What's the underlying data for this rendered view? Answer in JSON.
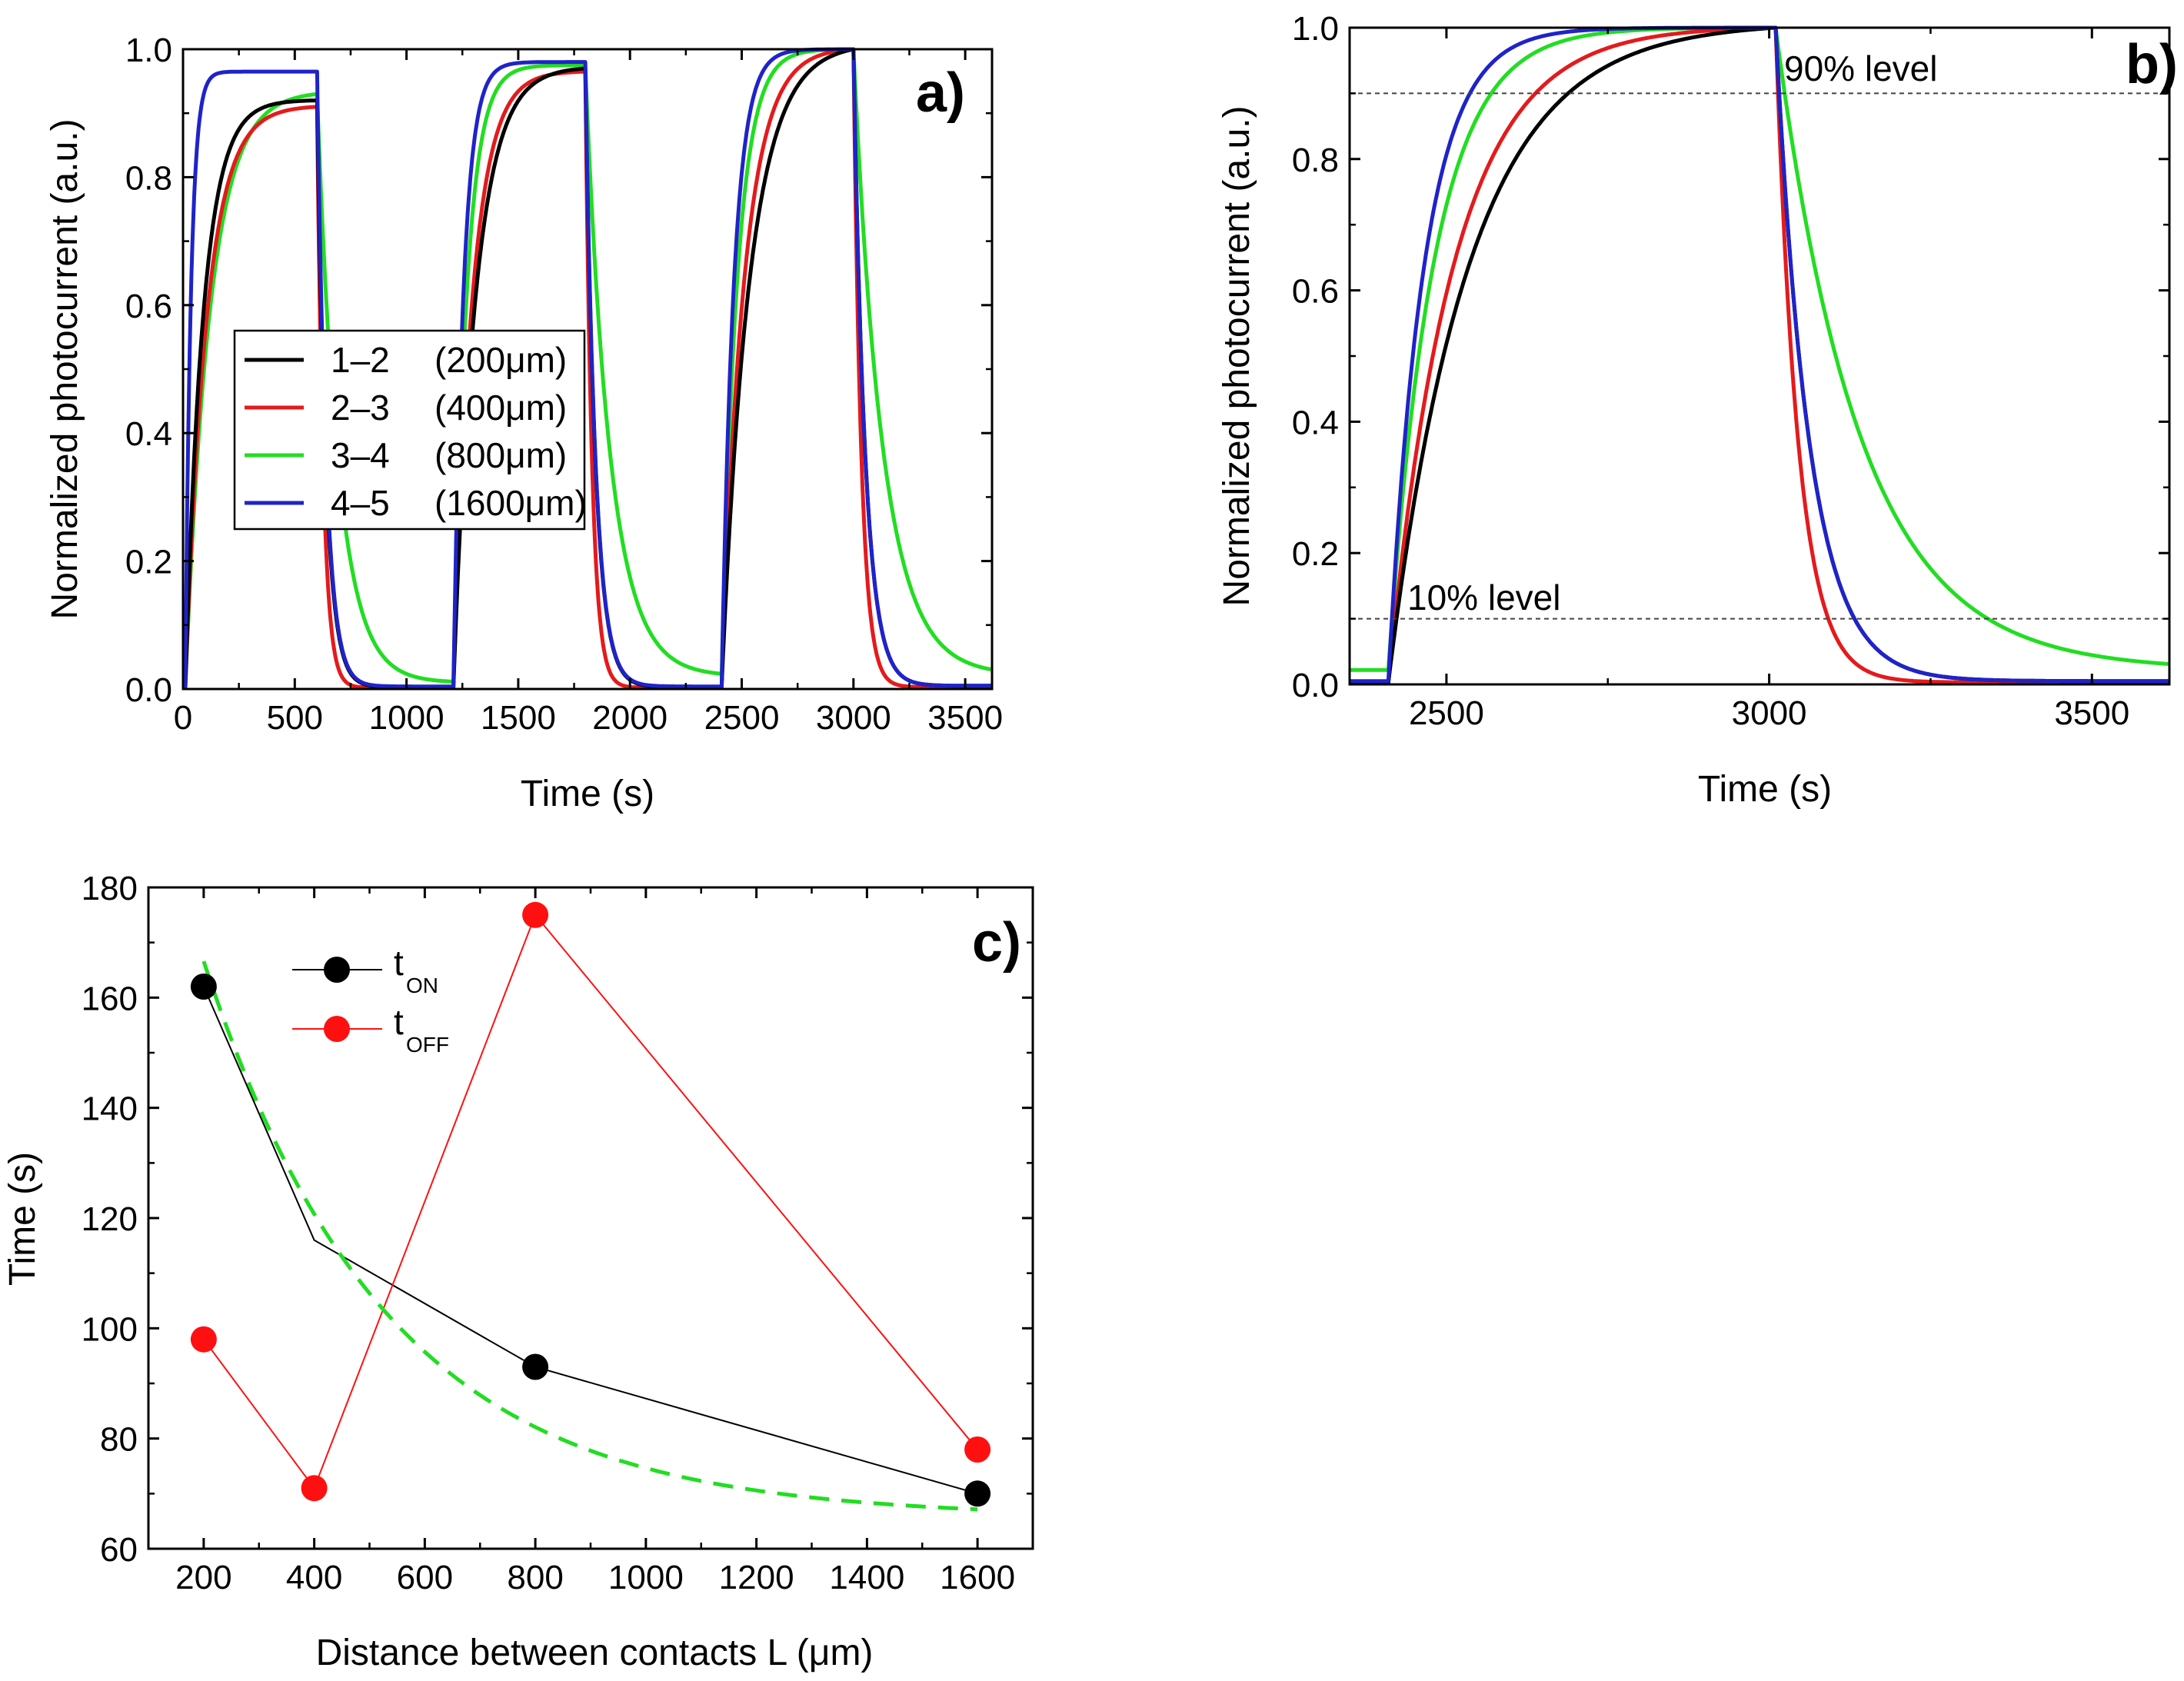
{
  "chart_data": [
    {
      "id": "a",
      "type": "line",
      "panel_label": "a)",
      "xlabel": "Time (s)",
      "ylabel": "Normalized photocurrent (a.u.)",
      "xlim": [
        0,
        3620
      ],
      "ylim": [
        0,
        1.0
      ],
      "xticks": [
        0,
        500,
        1000,
        1500,
        2000,
        2500,
        3000,
        3500
      ],
      "xtick_labels": [
        "0",
        "500",
        "1000",
        "1500",
        "2000",
        "2500",
        "3000",
        "3500"
      ],
      "yticks": [
        0.0,
        0.2,
        0.4,
        0.6,
        0.8,
        1.0
      ],
      "ytick_labels": [
        "0.0",
        "0.2",
        "0.4",
        "0.6",
        "0.8",
        "1.0"
      ],
      "legend_position": "center-left",
      "cycles": [
        [
          10,
          600,
          1210
        ],
        [
          1210,
          1800,
          2410
        ],
        [
          2410,
          3000,
          3620
        ]
      ],
      "series": [
        {
          "name": "1-2",
          "label_a": "1–2",
          "label_b": "(200μm)",
          "color": "#000000",
          "on_tau": [
            80,
            100,
            125
          ],
          "off_tau": [
            40,
            45,
            52
          ],
          "cycle_peaks": [
            0.92,
            0.97,
            1.0
          ],
          "cycle_ends": [
            0.003,
            0.003,
            0.005
          ]
        },
        {
          "name": "2-3",
          "label_a": "2–3",
          "label_b": "(400μm)",
          "color": "#e41a1c",
          "on_tau": [
            95,
            85,
            100
          ],
          "off_tau": [
            28,
            30,
            35
          ],
          "cycle_peaks": [
            0.91,
            0.965,
            1.0
          ],
          "cycle_ends": [
            0.002,
            0.002,
            0.003
          ]
        },
        {
          "name": "3-4",
          "label_a": "3–4",
          "label_b": "(800μm)",
          "color": "#22dd22",
          "on_tau": [
            110,
            60,
            70
          ],
          "off_tau": [
            95,
            110,
            130
          ],
          "cycle_peaks": [
            0.93,
            0.975,
            1.0
          ],
          "cycle_ends": [
            0.01,
            0.02,
            0.022
          ]
        },
        {
          "name": "4-5",
          "label_a": "4–5",
          "label_b": "(1600μm)",
          "color": "#1f23c9",
          "on_tau": [
            25,
            45,
            55
          ],
          "off_tau": [
            40,
            45,
            52
          ],
          "cycle_peaks": [
            0.965,
            0.98,
            1.0
          ],
          "cycle_ends": [
            0.004,
            0.004,
            0.005
          ]
        }
      ]
    },
    {
      "id": "b",
      "type": "line",
      "panel_label": "b)",
      "xlabel": "Time (s)",
      "ylabel": "Normalized photocurrent (a.u.)",
      "xlim": [
        2350,
        3620
      ],
      "ylim": [
        0,
        1.0
      ],
      "xticks": [
        2500,
        3000,
        3500
      ],
      "xtick_labels": [
        "2500",
        "3000",
        "3500"
      ],
      "yticks": [
        0.0,
        0.2,
        0.4,
        0.6,
        0.8,
        1.0
      ],
      "ytick_labels": [
        "0.0",
        "0.2",
        "0.4",
        "0.6",
        "0.8",
        "1.0"
      ],
      "on_time": 2410,
      "off_time": 3010,
      "reference_lines": [
        {
          "y": 0.9,
          "label": "90% level"
        },
        {
          "y": 0.1,
          "label": "10% level"
        }
      ],
      "series": [
        {
          "name": "1-2",
          "color": "#000000",
          "on_tau": 125,
          "off_tau": 52,
          "start_level": 0.003,
          "end_level": 0.005
        },
        {
          "name": "2-3",
          "color": "#e41a1c",
          "on_tau": 100,
          "off_tau": 35,
          "start_level": 0.002,
          "end_level": 0.003
        },
        {
          "name": "3-4",
          "color": "#22dd22",
          "on_tau": 70,
          "off_tau": 130,
          "start_level": 0.022,
          "end_level": 0.022
        },
        {
          "name": "4-5",
          "color": "#1f23c9",
          "on_tau": 55,
          "off_tau": 52,
          "start_level": 0.005,
          "end_level": 0.005
        }
      ]
    },
    {
      "id": "c",
      "type": "scatter",
      "panel_label": "c)",
      "xlabel": "Distance between contacts L (μm)",
      "ylabel": "Time (s)",
      "xlim": [
        100,
        1700
      ],
      "ylim": [
        60,
        180
      ],
      "xticks": [
        200,
        400,
        600,
        800,
        1000,
        1200,
        1400,
        1600
      ],
      "xtick_labels": [
        "200",
        "400",
        "600",
        "800",
        "1000",
        "1200",
        "1400",
        "1600"
      ],
      "yticks": [
        60,
        80,
        100,
        120,
        140,
        160,
        180
      ],
      "ytick_labels": [
        "60",
        "80",
        "100",
        "120",
        "140",
        "160",
        "180"
      ],
      "series": [
        {
          "name": "t_ON",
          "label_main": "t",
          "label_sub": "ON",
          "color": "#000000",
          "marker": "filled-circle",
          "x": [
            200,
            400,
            800,
            1600
          ],
          "y": [
            162,
            116,
            93,
            70
          ],
          "marker_x": [
            200,
            800,
            1600
          ]
        },
        {
          "name": "t_OFF",
          "label_main": "t",
          "label_sub": "OFF",
          "color": "#ff1010",
          "marker": "filled-circle",
          "x": [
            200,
            400,
            800,
            1600
          ],
          "y": [
            98,
            71,
            175,
            78
          ],
          "marker_x": [
            200,
            400,
            800,
            1600
          ]
        }
      ],
      "fit": {
        "type": "exponential-decay",
        "color": "#22dd22",
        "style": "dashed",
        "x_range": [
          200,
          1600
        ],
        "y0": 65.7,
        "A": 136.6,
        "tau": 330
      }
    }
  ]
}
